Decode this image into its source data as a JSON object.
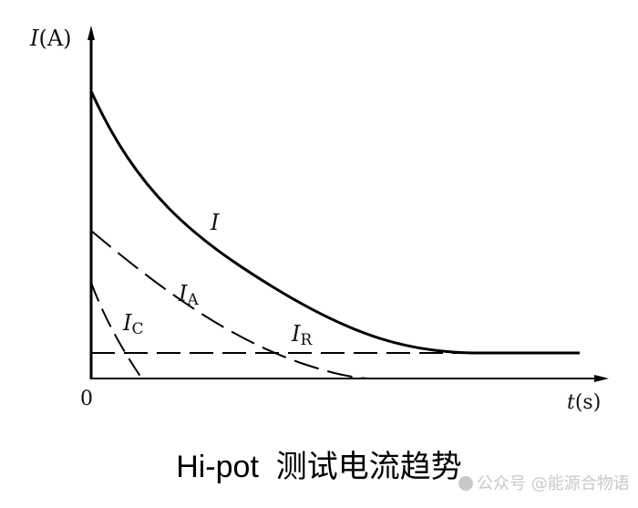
{
  "diagram": {
    "y_axis_label": {
      "var": "I",
      "unit": "(A)"
    },
    "x_axis_label": {
      "var": "t",
      "unit": "(s)"
    },
    "origin_label": "0",
    "curves": [
      {
        "id": "I",
        "label": "I",
        "sub": "",
        "style": "solid"
      },
      {
        "id": "IA",
        "label": "I",
        "sub": "A",
        "style": "dashed"
      },
      {
        "id": "IC",
        "label": "I",
        "sub": "C",
        "style": "dashed"
      },
      {
        "id": "IR",
        "label": "I",
        "sub": "R",
        "style": "dashed"
      }
    ]
  },
  "caption": "Hi-pot  测试电流趋势",
  "watermark": "公众号 @能源合物语",
  "colors": {
    "line": "#000000",
    "watermark": "#c8c8c8"
  }
}
